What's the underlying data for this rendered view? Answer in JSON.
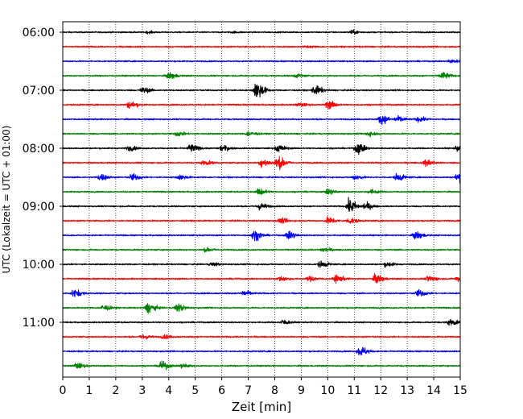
{
  "chart_data": {
    "type": "line",
    "title": "",
    "xlabel": "Zeit  [min]",
    "ylabel": "UTC (Lokalzeit = UTC + 01:00)",
    "xlim": [
      0,
      15
    ],
    "x_ticks": [
      0,
      1,
      2,
      3,
      4,
      5,
      6,
      7,
      8,
      9,
      10,
      11,
      12,
      13,
      14,
      15
    ],
    "x_tick_labels": [
      "0",
      "1",
      "2",
      "3",
      "4",
      "5",
      "6",
      "7",
      "8",
      "9",
      "10",
      "11",
      "12",
      "13",
      "14",
      "15"
    ],
    "y_tick_labels": [
      "06:00",
      "07:00",
      "08:00",
      "09:00",
      "10:00",
      "11:00"
    ],
    "grid": {
      "vertical": true,
      "style": "dotted"
    },
    "colors": [
      "#000000",
      "#ff0000",
      "#0000ff",
      "#008000"
    ],
    "trace_interval_min": 15,
    "traces": [
      {
        "start": "06:00",
        "color": "#000000",
        "events": [
          [
            3.2,
            0.15
          ],
          [
            6.4,
            0.12
          ],
          [
            10.9,
            0.3
          ]
        ]
      },
      {
        "start": "06:15",
        "color": "#ff0000",
        "events": [
          [
            9.2,
            0.15
          ]
        ]
      },
      {
        "start": "06:30",
        "color": "#0000ff",
        "events": [
          [
            14.6,
            0.3
          ]
        ]
      },
      {
        "start": "06:45",
        "color": "#008000",
        "events": [
          [
            4.0,
            0.6
          ],
          [
            8.8,
            0.3
          ],
          [
            14.3,
            0.6
          ]
        ]
      },
      {
        "start": "07:00",
        "color": "#000000",
        "events": [
          [
            3.0,
            0.5
          ],
          [
            7.3,
            1.6
          ],
          [
            9.5,
            0.8
          ]
        ]
      },
      {
        "start": "07:15",
        "color": "#ff0000",
        "events": [
          [
            2.5,
            0.6
          ],
          [
            8.9,
            0.3
          ],
          [
            10.0,
            0.7
          ]
        ]
      },
      {
        "start": "07:30",
        "color": "#0000ff",
        "events": [
          [
            12.0,
            0.8
          ],
          [
            12.6,
            0.5
          ],
          [
            13.4,
            0.4
          ]
        ]
      },
      {
        "start": "07:45",
        "color": "#008000",
        "events": [
          [
            4.3,
            0.4
          ],
          [
            7.0,
            0.4
          ],
          [
            11.5,
            0.4
          ]
        ]
      },
      {
        "start": "08:00",
        "color": "#000000",
        "events": [
          [
            2.5,
            0.4
          ],
          [
            4.8,
            0.7
          ],
          [
            6.0,
            0.5
          ],
          [
            8.1,
            0.6
          ],
          [
            11.1,
            1.0
          ],
          [
            14.9,
            0.5
          ]
        ]
      },
      {
        "start": "08:15",
        "color": "#ff0000",
        "events": [
          [
            5.3,
            0.4
          ],
          [
            7.5,
            0.8
          ],
          [
            8.1,
            1.1
          ],
          [
            13.7,
            0.6
          ]
        ]
      },
      {
        "start": "08:30",
        "color": "#0000ff",
        "events": [
          [
            1.4,
            0.6
          ],
          [
            2.6,
            0.6
          ],
          [
            4.4,
            0.4
          ],
          [
            11.0,
            0.4
          ],
          [
            12.6,
            0.6
          ],
          [
            14.9,
            0.8
          ]
        ]
      },
      {
        "start": "08:45",
        "color": "#008000",
        "events": [
          [
            7.4,
            0.6
          ],
          [
            10.0,
            0.5
          ],
          [
            11.6,
            0.4
          ]
        ]
      },
      {
        "start": "09:00",
        "color": "#000000",
        "events": [
          [
            7.4,
            0.6
          ],
          [
            10.8,
            1.2
          ],
          [
            11.4,
            0.6
          ]
        ]
      },
      {
        "start": "09:15",
        "color": "#ff0000",
        "events": [
          [
            8.2,
            0.4
          ],
          [
            10.0,
            0.6
          ],
          [
            10.8,
            0.5
          ]
        ]
      },
      {
        "start": "09:30",
        "color": "#0000ff",
        "events": [
          [
            7.2,
            0.9
          ],
          [
            8.5,
            0.7
          ],
          [
            13.3,
            0.7
          ]
        ]
      },
      {
        "start": "09:45",
        "color": "#008000",
        "events": [
          [
            5.4,
            0.3
          ],
          [
            9.8,
            0.4
          ]
        ]
      },
      {
        "start": "10:00",
        "color": "#000000",
        "events": [
          [
            5.6,
            0.3
          ],
          [
            9.7,
            0.5
          ],
          [
            12.2,
            0.4
          ]
        ]
      },
      {
        "start": "10:15",
        "color": "#ff0000",
        "events": [
          [
            8.2,
            0.4
          ],
          [
            9.3,
            0.4
          ],
          [
            10.3,
            0.6
          ],
          [
            11.8,
            0.8
          ],
          [
            13.8,
            0.5
          ],
          [
            14.9,
            0.4
          ]
        ]
      },
      {
        "start": "10:30",
        "color": "#0000ff",
        "events": [
          [
            0.4,
            0.7
          ],
          [
            6.8,
            0.5
          ],
          [
            13.4,
            0.6
          ]
        ]
      },
      {
        "start": "10:45",
        "color": "#008000",
        "events": [
          [
            1.5,
            0.5
          ],
          [
            3.2,
            0.9
          ],
          [
            4.3,
            0.7
          ]
        ]
      },
      {
        "start": "11:00",
        "color": "#000000",
        "events": [
          [
            8.3,
            0.4
          ],
          [
            14.6,
            0.6
          ]
        ]
      },
      {
        "start": "11:15",
        "color": "#ff0000",
        "events": [
          [
            3.0,
            0.4
          ],
          [
            3.8,
            0.3
          ]
        ]
      },
      {
        "start": "11:30",
        "color": "#0000ff",
        "events": [
          [
            11.2,
            0.9
          ]
        ]
      },
      {
        "start": "11:45",
        "color": "#008000",
        "events": [
          [
            0.5,
            0.5
          ],
          [
            3.7,
            0.7
          ],
          [
            4.5,
            0.4
          ]
        ]
      }
    ]
  }
}
